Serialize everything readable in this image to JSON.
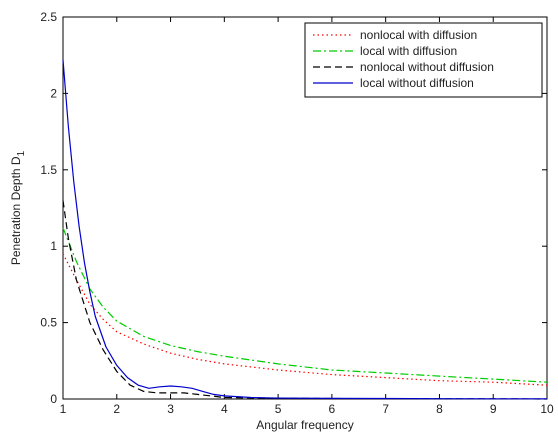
{
  "chart_data": {
    "type": "line",
    "xlabel": "Angular frequency",
    "ylabel": "Penetration Depth D",
    "ylabel_subscript": "1",
    "xlim": [
      1,
      10
    ],
    "ylim": [
      0,
      2.5
    ],
    "xticks": [
      "1",
      "2",
      "3",
      "4",
      "5",
      "6",
      "7",
      "8",
      "9",
      "10"
    ],
    "yticks": [
      "0",
      "0.5",
      "1",
      "1.5",
      "2",
      "2.5"
    ],
    "grid": false,
    "legend_position": "top-right",
    "series": [
      {
        "name": "nonlocal with diffusion",
        "color": "#ff0000",
        "style": "dotted",
        "x": [
          1.0,
          1.25,
          1.5,
          1.75,
          2.0,
          2.5,
          3.0,
          3.5,
          4.0,
          5.0,
          6.0,
          7.0,
          8.0,
          9.0,
          10.0
        ],
        "y": [
          0.95,
          0.78,
          0.62,
          0.52,
          0.44,
          0.36,
          0.3,
          0.26,
          0.23,
          0.19,
          0.16,
          0.14,
          0.12,
          0.11,
          0.09
        ]
      },
      {
        "name": "local with diffusion",
        "color": "#00cc00",
        "style": "dashdot",
        "x": [
          1.0,
          1.25,
          1.5,
          1.75,
          2.0,
          2.5,
          3.0,
          3.5,
          4.0,
          5.0,
          6.0,
          7.0,
          8.0,
          9.0,
          10.0
        ],
        "y": [
          1.12,
          0.9,
          0.72,
          0.6,
          0.51,
          0.41,
          0.35,
          0.31,
          0.28,
          0.23,
          0.19,
          0.17,
          0.15,
          0.13,
          0.11
        ]
      },
      {
        "name": "nonlocal without diffusion",
        "color": "#000000",
        "style": "dashed",
        "x": [
          1.0,
          1.1,
          1.25,
          1.5,
          1.75,
          2.0,
          2.25,
          2.5,
          2.75,
          3.0,
          3.25,
          3.5,
          3.75,
          4.0,
          5.0,
          6.0,
          7.0,
          8.0,
          9.0,
          10.0
        ],
        "y": [
          1.3,
          1.05,
          0.78,
          0.5,
          0.32,
          0.18,
          0.09,
          0.05,
          0.04,
          0.04,
          0.04,
          0.03,
          0.02,
          0.01,
          0.005,
          0.003,
          0.002,
          0.001,
          0.001,
          0.0
        ]
      },
      {
        "name": "local without diffusion",
        "color": "#0000cc",
        "style": "solid",
        "x": [
          1.0,
          1.05,
          1.1,
          1.2,
          1.3,
          1.4,
          1.5,
          1.6,
          1.8,
          2.0,
          2.2,
          2.4,
          2.6,
          2.8,
          3.0,
          3.2,
          3.4,
          3.6,
          3.8,
          4.0,
          4.5,
          5.0,
          6.0,
          7.0,
          8.0,
          9.0,
          10.0
        ],
        "y": [
          2.22,
          2.0,
          1.78,
          1.42,
          1.13,
          0.89,
          0.7,
          0.54,
          0.34,
          0.22,
          0.14,
          0.09,
          0.07,
          0.08,
          0.085,
          0.08,
          0.07,
          0.05,
          0.03,
          0.02,
          0.01,
          0.006,
          0.004,
          0.003,
          0.002,
          0.001,
          0.001
        ]
      }
    ]
  }
}
